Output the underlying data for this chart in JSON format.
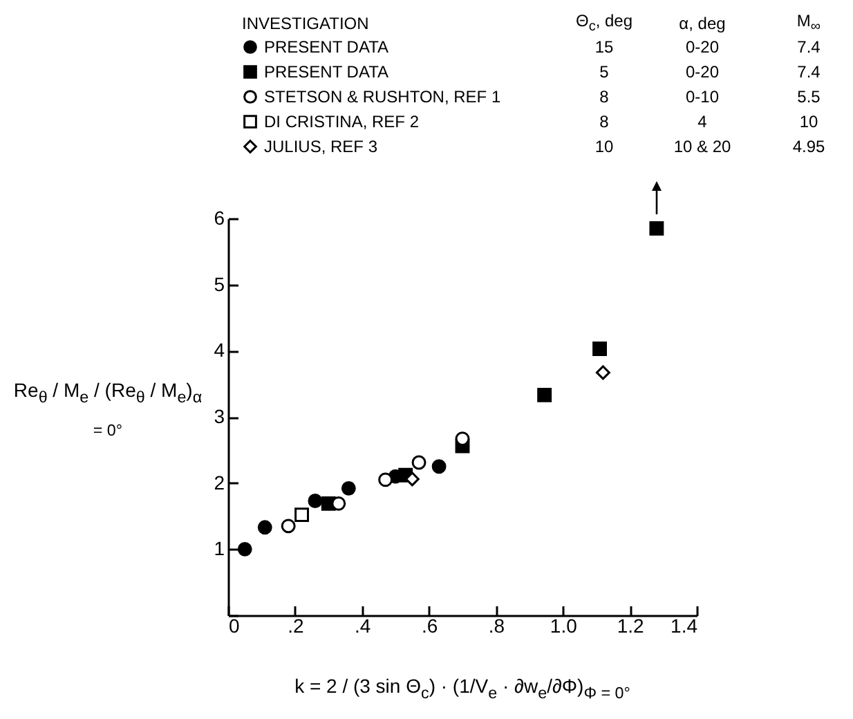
{
  "chart_data": {
    "type": "scatter",
    "xlabel": "k = 2 / (3 sin Θ$_{c}$) · (1/V$_{e}$ · ∂w$_{e}$/∂Φ)$_{Φ = 0°}$",
    "ylabel": "Re$_{θ}$ / M$_{e}$ / (Re$_{θ}$ / M$_{e}$)$_{α = 0°}$",
    "legend_title": "INVESTIGATION",
    "annotations": [
      "Θ$_{c}$, deg",
      "α, deg",
      "M$_{∞}$",
      "15",
      "0-20",
      "7.4",
      "5",
      "0-20",
      "7.4",
      "8",
      "0-10",
      "5.5",
      "8",
      "4",
      "10",
      "10",
      "10 & 20",
      "4.95"
    ],
    "series": [
      {
        "name": "PRESENT DATA",
        "color": "#000000",
        "marker": "circle",
        "x": [
          0.05,
          0.11,
          0.26,
          0.36,
          0.5,
          0.63
        ],
        "values": [
          1.0,
          1.33,
          1.73,
          1.92,
          2.1,
          2.25
        ]
      },
      {
        "name": "PRESENT DATA",
        "color": "#000000",
        "marker": "square",
        "x": [
          0.3,
          0.53,
          0.7,
          0.945,
          1.11,
          1.28
        ],
        "values": [
          1.69,
          2.12,
          2.56,
          3.33,
          4.03,
          5.85
        ]
      },
      {
        "name": "STETSON & RUSHTON, REF 1",
        "color": "#ffffff",
        "marker": "circle",
        "x": [
          0.18,
          0.33,
          0.47,
          0.57,
          0.7
        ],
        "values": [
          1.35,
          1.69,
          2.05,
          2.31,
          2.67
        ]
      },
      {
        "name": "DI CRISTINA, REF 2",
        "color": "#ffffff",
        "marker": "square",
        "x": [
          0.22
        ],
        "values": [
          1.52
        ]
      },
      {
        "name": "JULIUS, REF 3",
        "color": "#ffffff",
        "marker": "diamond",
        "x": [
          0.55,
          1.12
        ],
        "values": [
          2.06,
          3.67
        ]
      }
    ],
    "xlim": [
      0,
      1.4
    ],
    "ylim": [
      0,
      6
    ],
    "xticks": [
      0,
      {
        "value": 0.2,
        "label": ".2"
      },
      {
        "value": 0.4,
        "label": ".4"
      },
      {
        "value": 0.6,
        "label": ".6"
      },
      {
        "value": 0.8,
        "label": ".8"
      },
      {
        "value": 1.0,
        "label": "1.0"
      },
      {
        "value": 1.2,
        "label": "1.2"
      },
      1.4
    ],
    "yticks": [
      {
        "value": 0,
        "label": null
      },
      1,
      2,
      3,
      4,
      5,
      6
    ],
    "grid": false,
    "legend": "top"
  }
}
